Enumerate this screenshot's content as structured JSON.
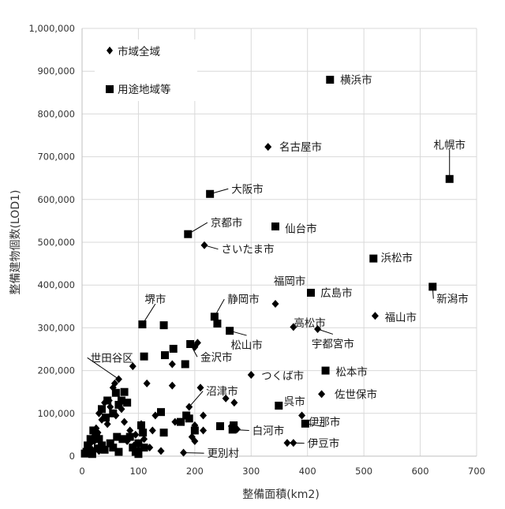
{
  "chart_data": {
    "type": "scatter",
    "title": "",
    "xlabel": "整備面積(km2)",
    "ylabel": "整備建物個数(LOD1)",
    "xlim": [
      0,
      700
    ],
    "ylim": [
      0,
      1000000
    ],
    "x_ticks": [
      "0",
      "100",
      "200",
      "300",
      "400",
      "500",
      "600",
      "700"
    ],
    "y_ticks": [
      "0",
      "100,000",
      "200,000",
      "300,000",
      "400,000",
      "500,000",
      "600,000",
      "700,000",
      "800,000",
      "900,000",
      "1,000,000"
    ],
    "grid": true,
    "legend_position": "top-left",
    "series": [
      {
        "name": "市域全域",
        "marker": "diamond",
        "color": "#000000",
        "points": [
          [
            330,
            723000
          ],
          [
            217,
            493000
          ],
          [
            343,
            356000
          ],
          [
            520,
            328000
          ],
          [
            375,
            302000
          ],
          [
            418,
            297000
          ],
          [
            300,
            190000
          ],
          [
            425,
            145000
          ],
          [
            390,
            95000
          ],
          [
            364,
            31000
          ],
          [
            375,
            31000
          ],
          [
            40,
            125000
          ],
          [
            48,
            130000
          ],
          [
            55,
            160000
          ],
          [
            50,
            115000
          ],
          [
            58,
            170000
          ],
          [
            65,
            180000
          ],
          [
            30,
            100000
          ],
          [
            35,
            85000
          ],
          [
            25,
            65000
          ],
          [
            20,
            45000
          ],
          [
            15,
            30000
          ],
          [
            28,
            55000
          ],
          [
            45,
            75000
          ],
          [
            60,
            95000
          ],
          [
            70,
            110000
          ],
          [
            75,
            80000
          ],
          [
            85,
            60000
          ],
          [
            95,
            50000
          ],
          [
            90,
            210000
          ],
          [
            115,
            170000
          ],
          [
            160,
            215000
          ],
          [
            200,
            255000
          ],
          [
            205,
            265000
          ],
          [
            160,
            165000
          ],
          [
            210,
            160000
          ],
          [
            190,
            115000
          ],
          [
            215,
            95000
          ],
          [
            165,
            80000
          ],
          [
            200,
            72000
          ],
          [
            215,
            60000
          ],
          [
            195,
            45000
          ],
          [
            200,
            35000
          ],
          [
            180,
            8000
          ],
          [
            130,
            95000
          ],
          [
            120,
            20000
          ],
          [
            140,
            12000
          ],
          [
            100,
            15000
          ],
          [
            110,
            40000
          ],
          [
            255,
            135000
          ],
          [
            270,
            125000
          ],
          [
            265,
            70000
          ],
          [
            275,
            63000
          ],
          [
            10,
            20000
          ],
          [
            18,
            15000
          ],
          [
            22,
            35000
          ],
          [
            12,
            8000
          ],
          [
            30,
            12000
          ],
          [
            38,
            20000
          ],
          [
            80,
            35000
          ],
          [
            92,
            25000
          ],
          [
            105,
            75000
          ],
          [
            125,
            60000
          ]
        ]
      },
      {
        "name": "用途地域等",
        "marker": "square",
        "color": "#000000",
        "points": [
          [
            440,
            880000
          ],
          [
            652,
            648000
          ],
          [
            227,
            613000
          ],
          [
            343,
            537000
          ],
          [
            188,
            519000
          ],
          [
            517,
            462000
          ],
          [
            622,
            396000
          ],
          [
            406,
            382000
          ],
          [
            107,
            308000
          ],
          [
            145,
            306000
          ],
          [
            235,
            326000
          ],
          [
            240,
            310000
          ],
          [
            262,
            293000
          ],
          [
            110,
            233000
          ],
          [
            147,
            236000
          ],
          [
            192,
            262000
          ],
          [
            162,
            251000
          ],
          [
            183,
            215000
          ],
          [
            432,
            200000
          ],
          [
            349,
            118000
          ],
          [
            396,
            76000
          ],
          [
            267,
            62000
          ],
          [
            269,
            72000
          ],
          [
            245,
            70000
          ],
          [
            190,
            88000
          ],
          [
            200,
            60000
          ],
          [
            140,
            103000
          ],
          [
            145,
            55000
          ],
          [
            105,
            72000
          ],
          [
            108,
            55000
          ],
          [
            100,
            30000
          ],
          [
            90,
            20000
          ],
          [
            75,
            150000
          ],
          [
            80,
            125000
          ],
          [
            70,
            130000
          ],
          [
            60,
            148000
          ],
          [
            65,
            120000
          ],
          [
            55,
            100000
          ],
          [
            45,
            130000
          ],
          [
            35,
            110000
          ],
          [
            42,
            90000
          ],
          [
            20,
            60000
          ],
          [
            25,
            50000
          ],
          [
            30,
            40000
          ],
          [
            35,
            25000
          ],
          [
            40,
            15000
          ],
          [
            15,
            40000
          ],
          [
            10,
            25000
          ],
          [
            5,
            6000
          ],
          [
            8,
            10000
          ],
          [
            18,
            5000
          ],
          [
            28,
            18000
          ],
          [
            50,
            30000
          ],
          [
            62,
            45000
          ],
          [
            72,
            40000
          ],
          [
            85,
            45000
          ],
          [
            95,
            10000
          ],
          [
            100,
            5000
          ],
          [
            55,
            20000
          ],
          [
            65,
            10000
          ],
          [
            110,
            20000
          ],
          [
            185,
            95000
          ],
          [
            175,
            80000
          ]
        ]
      }
    ],
    "annotations": [
      {
        "text": "横浜市",
        "x": 440,
        "y": 880000,
        "lx": 458,
        "ly": 880000,
        "anchor": "start"
      },
      {
        "text": "名古屋市",
        "x": 330,
        "y": 723000,
        "lx": 350,
        "ly": 723000,
        "anchor": "start"
      },
      {
        "text": "札幌市",
        "x": 652,
        "y": 648000,
        "lx": 652,
        "ly": 728000,
        "anchor": "middle",
        "line": true
      },
      {
        "text": "大阪市",
        "x": 227,
        "y": 613000,
        "lx": 265,
        "ly": 625000,
        "anchor": "start",
        "line": true
      },
      {
        "text": "京都市",
        "x": 188,
        "y": 519000,
        "lx": 228,
        "ly": 546000,
        "anchor": "start",
        "line": true
      },
      {
        "text": "仙台市",
        "x": 343,
        "y": 537000,
        "lx": 360,
        "ly": 532000,
        "anchor": "start"
      },
      {
        "text": "さいたま市",
        "x": 217,
        "y": 493000,
        "lx": 247,
        "ly": 484000,
        "anchor": "start",
        "line": true
      },
      {
        "text": "浜松市",
        "x": 517,
        "y": 462000,
        "lx": 530,
        "ly": 464000,
        "anchor": "start"
      },
      {
        "text": "福岡市",
        "x": 343,
        "y": 356000,
        "lx": 340,
        "ly": 410000,
        "anchor": "start"
      },
      {
        "text": "広島市",
        "x": 406,
        "y": 382000,
        "lx": 423,
        "ly": 382000,
        "anchor": "start"
      },
      {
        "text": "新潟市",
        "x": 622,
        "y": 396000,
        "lx": 629,
        "ly": 368000,
        "anchor": "start",
        "line": true
      },
      {
        "text": "堺市",
        "x": 107,
        "y": 308000,
        "lx": 130,
        "ly": 367000,
        "anchor": "middle",
        "line": true
      },
      {
        "text": "静岡市",
        "x": 235,
        "y": 326000,
        "lx": 258,
        "ly": 367000,
        "anchor": "start",
        "line": true
      },
      {
        "text": "福山市",
        "x": 520,
        "y": 328000,
        "lx": 537,
        "ly": 325000,
        "anchor": "start"
      },
      {
        "text": "高松市",
        "x": 375,
        "y": 302000,
        "lx": 404,
        "ly": 312000,
        "anchor": "middle"
      },
      {
        "text": "松山市",
        "x": 262,
        "y": 293000,
        "lx": 292,
        "ly": 260000,
        "anchor": "middle",
        "line": true
      },
      {
        "text": "宇都宮市",
        "x": 418,
        "y": 297000,
        "lx": 445,
        "ly": 263000,
        "anchor": "middle",
        "line": true
      },
      {
        "text": "世田谷区",
        "x": 65,
        "y": 180000,
        "lx": 15,
        "ly": 230000,
        "anchor": "start",
        "line": true
      },
      {
        "text": "金沢市",
        "x": 192,
        "y": 262000,
        "lx": 210,
        "ly": 232000,
        "anchor": "start",
        "line": true
      },
      {
        "text": "つくば市",
        "x": 300,
        "y": 190000,
        "lx": 318,
        "ly": 188000,
        "anchor": "start"
      },
      {
        "text": "松本市",
        "x": 432,
        "y": 200000,
        "lx": 450,
        "ly": 197000,
        "anchor": "start"
      },
      {
        "text": "沼津市",
        "x": 190,
        "y": 115000,
        "lx": 220,
        "ly": 152000,
        "anchor": "start",
        "line": true
      },
      {
        "text": "佐世保市",
        "x": 425,
        "y": 145000,
        "lx": 448,
        "ly": 145000,
        "anchor": "start"
      },
      {
        "text": "呉市",
        "x": 349,
        "y": 118000,
        "lx": 377,
        "ly": 128000,
        "anchor": "middle"
      },
      {
        "text": "伊那市",
        "x": 396,
        "y": 76000,
        "lx": 430,
        "ly": 80000,
        "anchor": "middle",
        "line": true
      },
      {
        "text": "白河市",
        "x": 267,
        "y": 62000,
        "lx": 302,
        "ly": 60000,
        "anchor": "start",
        "line": true
      },
      {
        "text": "伊豆市",
        "x": 375,
        "y": 31000,
        "lx": 400,
        "ly": 30000,
        "anchor": "start",
        "line": true
      },
      {
        "text": "更別村",
        "x": 180,
        "y": 8000,
        "lx": 222,
        "ly": 7000,
        "anchor": "start",
        "line": true
      }
    ]
  }
}
